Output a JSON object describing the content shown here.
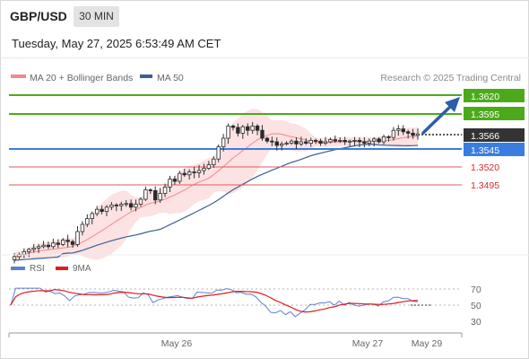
{
  "header": {
    "symbol": "GBP/USD",
    "timeframe": "30 MIN",
    "datetime": "Tuesday, May 27, 2025 6:53:49 AM CET",
    "credit": "Research © 2025 Trading Central"
  },
  "legend": {
    "ma20_label": "MA 20 + Bollinger Bands",
    "ma20_color": "#f08a8a",
    "ma50_label": "MA 50",
    "ma50_color": "#3a5f9a"
  },
  "levels": [
    {
      "label": "1.3620",
      "value": 1.362,
      "type": "resistance-target",
      "color": "#4caa1a"
    },
    {
      "label": "1.3595",
      "value": 1.3595,
      "type": "resistance",
      "color": "#4caa1a"
    },
    {
      "label": "1.3566",
      "value": 1.3566,
      "type": "current-price",
      "color": "#333333"
    },
    {
      "label": "1.3545",
      "value": 1.3545,
      "type": "pivot",
      "color": "#3a7de0"
    },
    {
      "label": "1.3520",
      "value": 1.352,
      "type": "support",
      "color": "#d22d2d"
    },
    {
      "label": "1.3495",
      "value": 1.3495,
      "type": "support",
      "color": "#d22d2d"
    }
  ],
  "rsi_panel": {
    "rsi_label": "RSI",
    "rsi_color": "#5b7fd6",
    "ma_label": "9MA",
    "ma_color": "#e01b1b",
    "ticks": [
      "70",
      "50",
      "30"
    ]
  },
  "x_axis": {
    "labels": [
      "May 26",
      "May 27",
      "May 29"
    ]
  },
  "chart_data": {
    "type": "candlestick",
    "instrument": "GBP/USD",
    "timeframe": "30 MIN",
    "price_levels": [
      1.362,
      1.3595,
      1.3566,
      1.3545,
      1.352,
      1.3495
    ],
    "last_price": 1.3566,
    "close_series": [
      1.3395,
      1.3398,
      1.3402,
      1.3405,
      1.3407,
      1.3409,
      1.3411,
      1.3409,
      1.3414,
      1.3412,
      1.3418,
      1.3416,
      1.3412,
      1.343,
      1.344,
      1.3448,
      1.3455,
      1.3461,
      1.3458,
      1.3464,
      1.3467,
      1.3466,
      1.3468,
      1.3469,
      1.3464,
      1.3468,
      1.3475,
      1.3488,
      1.3487,
      1.3474,
      1.3483,
      1.3492,
      1.3503,
      1.35,
      1.3511,
      1.3509,
      1.3513,
      1.3512,
      1.3515,
      1.3518,
      1.3523,
      1.3531,
      1.3548,
      1.356,
      1.3577,
      1.3575,
      1.3567,
      1.3576,
      1.3571,
      1.3577,
      1.3571,
      1.356,
      1.3556,
      1.3555,
      1.355,
      1.3552,
      1.3553,
      1.3556,
      1.3552,
      1.3555,
      1.3553,
      1.3557,
      1.3556,
      1.3553,
      1.3555,
      1.3558,
      1.3556,
      1.3557,
      1.3555,
      1.3556,
      1.3557,
      1.3555,
      1.3553,
      1.3556,
      1.3559,
      1.3555,
      1.3562,
      1.3561,
      1.3571,
      1.3573,
      1.3569,
      1.3567,
      1.3564,
      1.3566
    ]
  }
}
